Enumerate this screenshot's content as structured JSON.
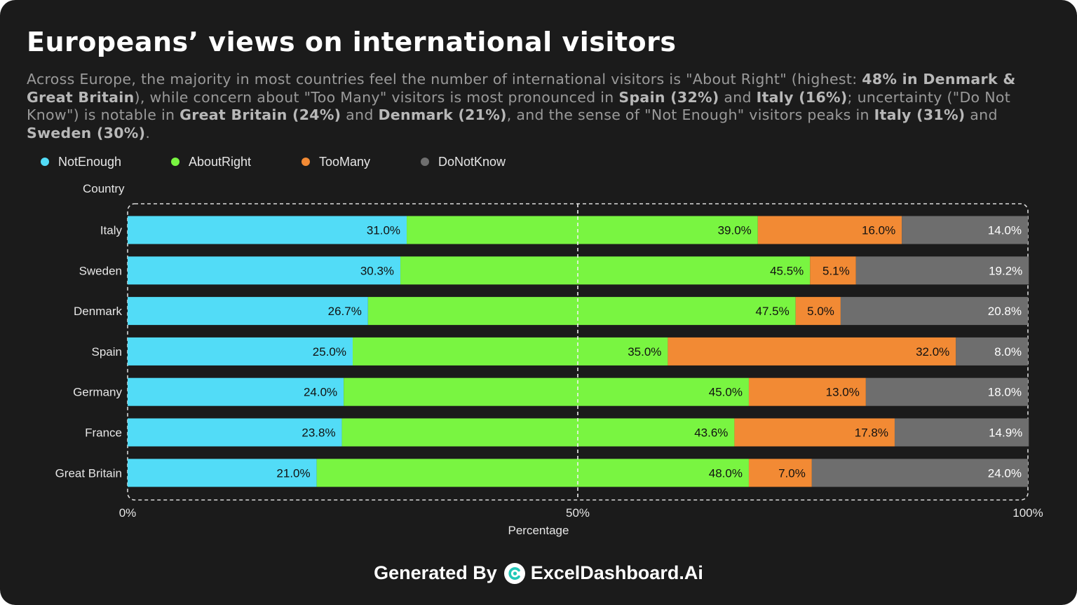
{
  "title": "Europeans’ views on international visitors",
  "subtitle_parts": [
    {
      "text": "Across Europe, the majority in most countries feel the number of international visitors is \"About Right\" (highest: ",
      "bold": false
    },
    {
      "text": "48% in Denmark & Great Britain",
      "bold": true
    },
    {
      "text": "), while concern about \"Too Many\" visitors is most pronounced in ",
      "bold": false
    },
    {
      "text": "Spain (32%)",
      "bold": true
    },
    {
      "text": " and ",
      "bold": false
    },
    {
      "text": "Italy (16%)",
      "bold": true
    },
    {
      "text": "; uncertainty (\"Do Not Know\") is notable in ",
      "bold": false
    },
    {
      "text": "Great Britain (24%)",
      "bold": true
    },
    {
      "text": " and ",
      "bold": false
    },
    {
      "text": "Denmark (21%)",
      "bold": true
    },
    {
      "text": ", and the sense of \"Not Enough\" visitors peaks in ",
      "bold": false
    },
    {
      "text": "Italy (31%)",
      "bold": true
    },
    {
      "text": " and ",
      "bold": false
    },
    {
      "text": "Sweden (30%)",
      "bold": true
    },
    {
      "text": ".",
      "bold": false
    }
  ],
  "footer": {
    "prefix": "Generated By",
    "brand": "ExcelDashboard.Ai",
    "logo_icon": "exceldashboard-logo-icon"
  },
  "chart_data": {
    "type": "bar",
    "orientation": "horizontal",
    "stacked": true,
    "normalized": "percent",
    "ylabel": "Country",
    "xlabel": "Percentage",
    "xlim": [
      0,
      100
    ],
    "xticks": [
      {
        "value": 0,
        "label": "0%"
      },
      {
        "value": 50,
        "label": "50%"
      },
      {
        "value": 100,
        "label": "100%"
      }
    ],
    "grid": "vertical dashed at 50%",
    "legend_position": "top-left",
    "categories": [
      "Italy",
      "Sweden",
      "Denmark",
      "Spain",
      "Germany",
      "France",
      "Great Britain"
    ],
    "series": [
      {
        "name": "NotEnough",
        "color": "#52dcf7",
        "values": [
          31.0,
          30.3,
          26.7,
          25.0,
          24.0,
          23.8,
          21.0
        ]
      },
      {
        "name": "AboutRight",
        "color": "#79f541",
        "values": [
          39.0,
          45.5,
          47.5,
          35.0,
          45.0,
          43.6,
          48.0
        ]
      },
      {
        "name": "TooMany",
        "color": "#f28a34",
        "values": [
          16.0,
          5.1,
          5.0,
          32.0,
          13.0,
          17.8,
          7.0
        ]
      },
      {
        "name": "DoNotKnow",
        "color": "#6e6e6e",
        "values": [
          14.0,
          19.2,
          20.8,
          8.0,
          18.0,
          14.9,
          24.0
        ]
      }
    ]
  }
}
